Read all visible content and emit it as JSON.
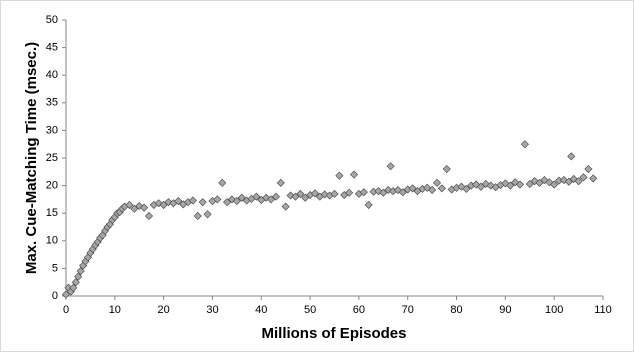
{
  "chart_data": {
    "type": "scatter",
    "xlabel": "Millions of Episodes",
    "ylabel": "Max. Cue-Matching Time (msec.)",
    "xlim": [
      0,
      110
    ],
    "xticks": [
      0,
      10,
      20,
      30,
      40,
      50,
      60,
      70,
      80,
      90,
      100,
      110
    ],
    "ylim": [
      0,
      50
    ],
    "yticks": [
      0,
      5,
      10,
      15,
      20,
      25,
      30,
      35,
      40,
      45,
      50
    ],
    "grid": false,
    "color": "#a6a6a6",
    "x": [
      0,
      0.5,
      1,
      1.5,
      2,
      2.5,
      3,
      3.5,
      4,
      4.5,
      5,
      5.5,
      6,
      6.5,
      7,
      7.5,
      8,
      8.5,
      9,
      9.5,
      10,
      10.5,
      11,
      11.5,
      12,
      13,
      14,
      15,
      16,
      17,
      18,
      19,
      20,
      21,
      22,
      23,
      24,
      25,
      26,
      27,
      28,
      29,
      30,
      31,
      32,
      33,
      34,
      35,
      36,
      37,
      38,
      39,
      40,
      41,
      42,
      43,
      44,
      45,
      46,
      47,
      48,
      49,
      50,
      51,
      52,
      53,
      54,
      55,
      56,
      57,
      58,
      59,
      60,
      61,
      62,
      63,
      64,
      65,
      66,
      66.5,
      67,
      68,
      69,
      70,
      71,
      72,
      73,
      74,
      75,
      76,
      77,
      78,
      79,
      80,
      81,
      82,
      83,
      84,
      85,
      86,
      87,
      88,
      89,
      90,
      91,
      92,
      93,
      94,
      95,
      96,
      97,
      98,
      99,
      100,
      101,
      102,
      103,
      103.5,
      104,
      105,
      106,
      107,
      108
    ],
    "values": [
      0.3,
      1.5,
      0.8,
      1.5,
      2.5,
      3.5,
      4.5,
      5.5,
      6.3,
      7,
      7.8,
      8.5,
      9.2,
      9.8,
      10.5,
      11,
      11.8,
      12.5,
      13,
      13.8,
      14.3,
      15,
      15.2,
      15.8,
      16.2,
      16.5,
      15.8,
      16.3,
      16,
      14.5,
      16.5,
      16.8,
      16.5,
      17,
      16.8,
      17.2,
      16.6,
      17,
      17.3,
      14.5,
      17,
      14.8,
      17.2,
      17.5,
      20.5,
      17,
      17.5,
      17.2,
      17.8,
      17.3,
      17.6,
      18,
      17.4,
      17.8,
      17.5,
      18,
      20.5,
      16.2,
      18.2,
      18,
      18.5,
      17.8,
      18.3,
      18.6,
      18,
      18.4,
      18.2,
      18.5,
      21.8,
      18.3,
      18.7,
      22,
      18.5,
      18.8,
      16.5,
      18.9,
      19,
      18.7,
      19.2,
      23.5,
      19,
      19.2,
      18.8,
      19.3,
      19.5,
      19,
      19.4,
      19.6,
      19.2,
      20.5,
      19.5,
      23,
      19.3,
      19.6,
      19.8,
      19.4,
      20,
      20.2,
      19.8,
      20.3,
      20,
      19.7,
      20.1,
      20.4,
      20,
      20.6,
      20.2,
      27.5,
      20.3,
      20.8,
      20.5,
      21,
      20.6,
      20.2,
      20.9,
      21,
      20.7,
      25.3,
      21.2,
      20.8,
      21.5,
      23,
      21.3
    ]
  }
}
